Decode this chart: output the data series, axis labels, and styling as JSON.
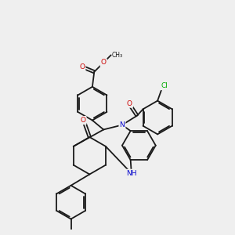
{
  "background_color": "#efefef",
  "atom_colors": {
    "C": "#1a1a1a",
    "N": "#0000cc",
    "O": "#cc0000",
    "Cl": "#00aa00",
    "H": "#1a1a1a"
  },
  "figsize": [
    3.0,
    3.0
  ],
  "dpi": 100,
  "lw": 1.3
}
